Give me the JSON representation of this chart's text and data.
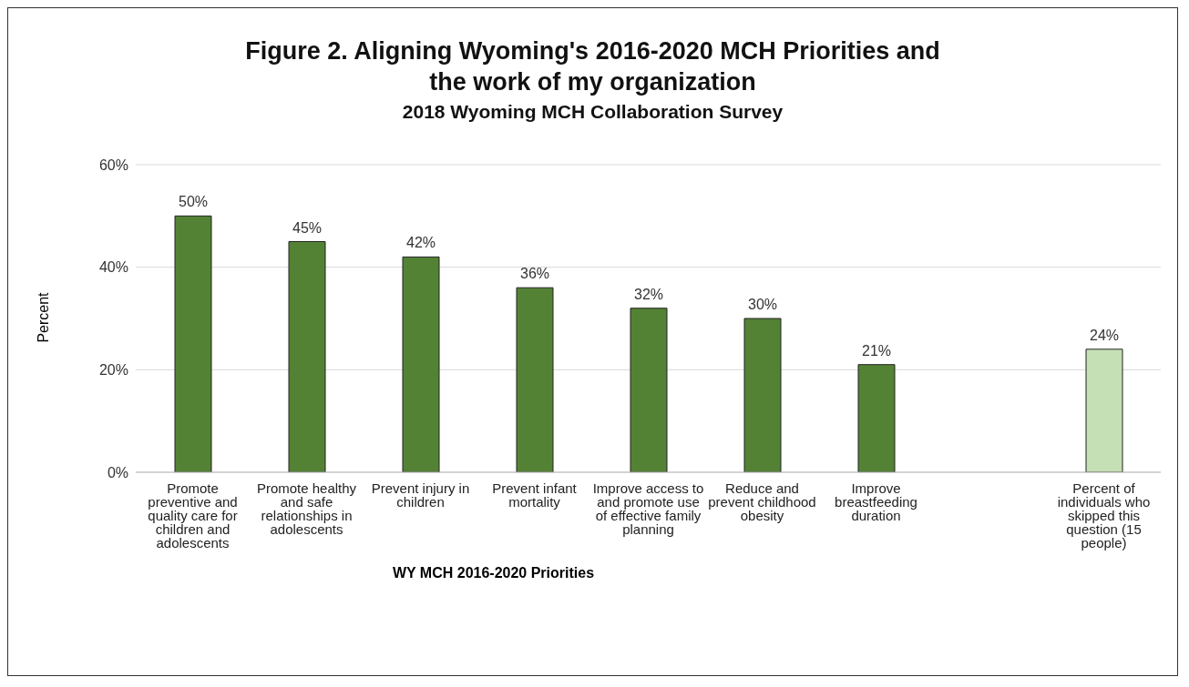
{
  "chart_data": {
    "type": "bar",
    "title": "Figure 2.  Aligning Wyoming's 2016-2020 MCH Priorities and the work of my organization",
    "subtitle": "2018 Wyoming MCH Collaboration Survey",
    "xlabel": "WY MCH 2016-2020 Priorities",
    "ylabel": "Percent",
    "categories": [
      "Promote preventive and quality care for children and adolescents",
      "Promote healthy and safe relationships in adolescents",
      "Prevent injury in children",
      "Prevent infant mortality",
      "Improve access to and promote use of effective family planning",
      "Reduce and prevent childhood obesity",
      "Improve breastfeeding duration",
      null,
      "Percent of individuals who skipped this question (15 people)"
    ],
    "values": [
      50,
      45,
      42,
      36,
      32,
      30,
      21,
      null,
      24
    ],
    "value_labels": [
      "50%",
      "45%",
      "42%",
      "36%",
      "32%",
      "30%",
      "21%",
      null,
      "24%"
    ],
    "colors": [
      "#548235",
      "#548235",
      "#548235",
      "#548235",
      "#548235",
      "#548235",
      "#548235",
      "#548235",
      "#c5e0b4"
    ],
    "ylim": [
      0,
      60
    ],
    "yticks": [
      {
        "value": 0,
        "label": "0%"
      },
      {
        "value": 20,
        "label": "20%"
      },
      {
        "value": 40,
        "label": "40%"
      },
      {
        "value": 60,
        "label": "60%"
      }
    ],
    "grid": "y",
    "legend": false
  }
}
